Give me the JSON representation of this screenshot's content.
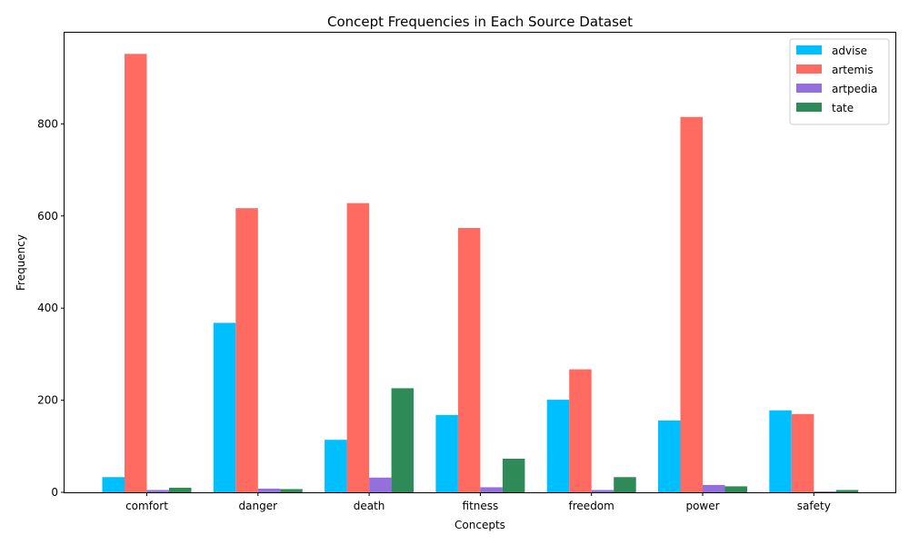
{
  "chart_data": {
    "type": "bar",
    "title": "Concept Frequencies in Each Source Dataset",
    "xlabel": "Concepts",
    "ylabel": "Frequency",
    "categories": [
      "comfort",
      "danger",
      "death",
      "fitness",
      "freedom",
      "power",
      "safety"
    ],
    "ylim": [
      0,
      998
    ],
    "yticks": [
      0,
      200,
      400,
      600,
      800
    ],
    "grid": false,
    "legend_position": "top-right",
    "series": [
      {
        "name": "advise",
        "color": "#00bfff",
        "values": [
          33,
          368,
          114,
          168,
          201,
          156,
          178
        ]
      },
      {
        "name": "artemis",
        "color": "#ff6b61",
        "values": [
          952,
          617,
          628,
          574,
          267,
          815,
          170
        ]
      },
      {
        "name": "artpedia",
        "color": "#9370db",
        "values": [
          5,
          8,
          32,
          11,
          5,
          16,
          2
        ]
      },
      {
        "name": "tate",
        "color": "#2e8b57",
        "values": [
          10,
          7,
          226,
          73,
          33,
          13,
          5
        ]
      }
    ]
  }
}
